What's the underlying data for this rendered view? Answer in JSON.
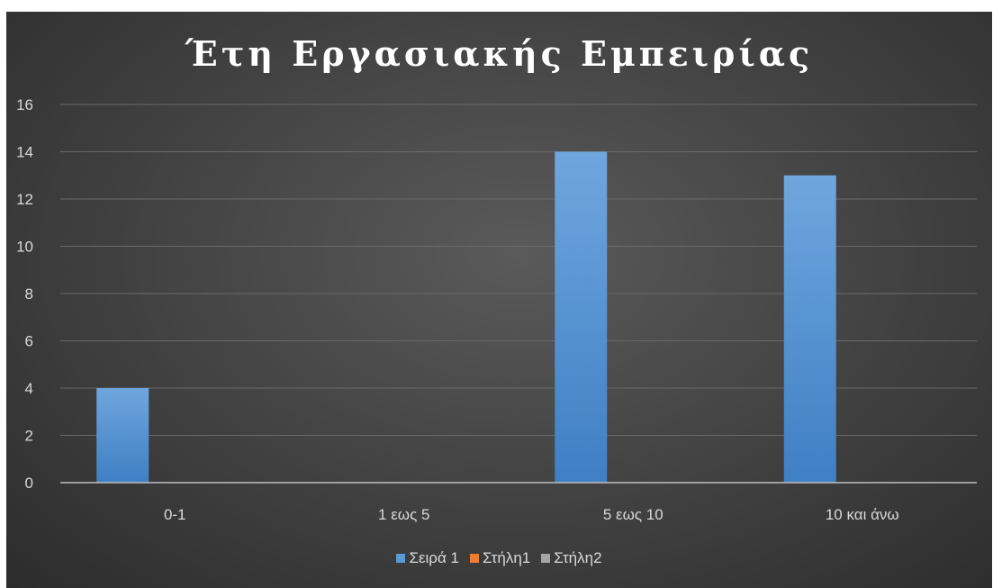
{
  "chart_data": {
    "type": "bar",
    "title": "Έτη Εργασιακής Εμπειρίας",
    "categories": [
      "0-1",
      "1 εως 5",
      "5 εως 10",
      "10 και άνω"
    ],
    "series": [
      {
        "name": "Σειρά 1",
        "values": [
          4,
          0,
          14,
          13
        ],
        "color": "#5b9bd5"
      },
      {
        "name": "Στήλη1",
        "values": [
          0,
          0,
          0,
          0
        ],
        "color": "#ed7d31"
      },
      {
        "name": "Στήλη2",
        "values": [
          0,
          0,
          0,
          0
        ],
        "color": "#a5a5a5"
      }
    ],
    "ylim": [
      0,
      16
    ],
    "yticks": [
      0,
      2,
      4,
      6,
      8,
      10,
      12,
      14,
      16
    ],
    "grid": true,
    "legend_position": "bottom"
  }
}
